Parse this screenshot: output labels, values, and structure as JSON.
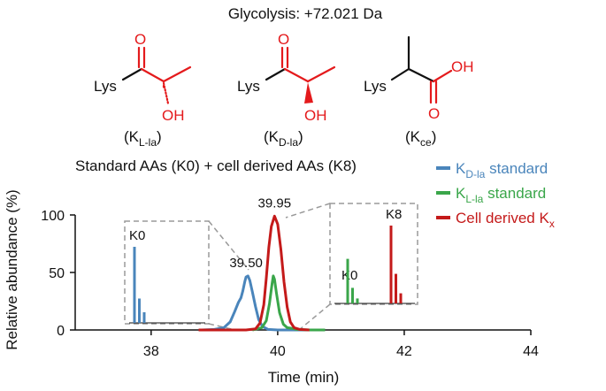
{
  "header": {
    "title": "Glycolysis: +72.021 Da"
  },
  "structures": [
    {
      "lys": "Lys",
      "o": "O",
      "oh": "OH",
      "caption": {
        "open": "(K",
        "sub": "L-la",
        "close": ")"
      }
    },
    {
      "lys": "Lys",
      "o": "O",
      "oh": "OH",
      "caption": {
        "open": "(K",
        "sub": "D-la",
        "close": ")"
      }
    },
    {
      "lys": "Lys",
      "o": "O",
      "oh": "OH",
      "caption": {
        "open": "(K",
        "sub": "ce",
        "close": ")"
      }
    }
  ],
  "colors": {
    "d_la": "#4a85bb",
    "l_la": "#3aa64a",
    "cell": "#c41a1a",
    "structure_red": "#e41a1c",
    "inset_border": "#9a9a9a"
  },
  "chart_data": {
    "type": "line",
    "title": "Standard AAs (K0) + cell derived AAs (K8)",
    "xlabel": "Time (min)",
    "ylabel": "Relative abundance (%)",
    "xlim": [
      36.8,
      44
    ],
    "ylim": [
      0,
      100
    ],
    "xticks": [
      38,
      40,
      42,
      44
    ],
    "yticks": [
      0,
      50,
      100
    ],
    "grid": false,
    "legend_position": "top-right",
    "legend": [
      {
        "key": "d_la",
        "pre": "K",
        "sub": "D-la",
        "post": " standard"
      },
      {
        "key": "l_la",
        "pre": "K",
        "sub": "L-la",
        "post": " standard"
      },
      {
        "key": "cell",
        "pre": "Cell derived K",
        "sub": "x",
        "post": ""
      }
    ],
    "series": [
      {
        "key": "d_la",
        "name": "KD-la standard",
        "points": [
          [
            38.8,
            0
          ],
          [
            39.0,
            0.5
          ],
          [
            39.15,
            2
          ],
          [
            39.25,
            7
          ],
          [
            39.32,
            16
          ],
          [
            39.38,
            24
          ],
          [
            39.42,
            28
          ],
          [
            39.45,
            34
          ],
          [
            39.48,
            42
          ],
          [
            39.5,
            46
          ],
          [
            39.53,
            47
          ],
          [
            39.56,
            43
          ],
          [
            39.6,
            33
          ],
          [
            39.65,
            20
          ],
          [
            39.7,
            9
          ],
          [
            39.76,
            3
          ],
          [
            39.85,
            0.5
          ],
          [
            40.0,
            0
          ],
          [
            40.6,
            0
          ]
        ]
      },
      {
        "key": "l_la",
        "name": "KL-la standard",
        "points": [
          [
            39.6,
            0
          ],
          [
            39.75,
            2
          ],
          [
            39.82,
            8
          ],
          [
            39.87,
            23
          ],
          [
            39.91,
            40
          ],
          [
            39.93,
            47
          ],
          [
            39.95,
            44
          ],
          [
            39.98,
            32
          ],
          [
            40.03,
            15
          ],
          [
            40.09,
            5
          ],
          [
            40.15,
            2
          ],
          [
            40.22,
            1.5
          ],
          [
            40.3,
            0.5
          ],
          [
            40.5,
            0
          ],
          [
            40.75,
            0
          ]
        ]
      },
      {
        "key": "cell",
        "name": "Cell derived Kx",
        "points": [
          [
            38.75,
            0
          ],
          [
            39.5,
            0
          ],
          [
            39.65,
            1
          ],
          [
            39.72,
            6
          ],
          [
            39.78,
            22
          ],
          [
            39.82,
            45
          ],
          [
            39.86,
            72
          ],
          [
            39.9,
            90
          ],
          [
            39.95,
            99
          ],
          [
            40.0,
            92
          ],
          [
            40.05,
            70
          ],
          [
            40.1,
            42
          ],
          [
            40.15,
            20
          ],
          [
            40.2,
            7
          ],
          [
            40.26,
            2
          ],
          [
            40.35,
            0.5
          ],
          [
            40.5,
            0
          ]
        ]
      }
    ],
    "peak_labels": [
      {
        "x": 39.5,
        "y": 47,
        "text": "39.50"
      },
      {
        "x": 39.95,
        "y": 99,
        "text": "39.95"
      }
    ],
    "insets": [
      {
        "label": "K0",
        "series": "d_la",
        "sticks": [
          [
            0,
            1.0
          ],
          [
            1,
            0.32
          ],
          [
            2,
            0.14
          ]
        ]
      },
      {
        "label_k0": "K0",
        "label_k8": "K8",
        "series_k0": "l_la",
        "series_k8": "cell",
        "sticks_k0": [
          [
            0,
            0.63
          ],
          [
            1,
            0.22
          ],
          [
            2,
            0.07
          ]
        ],
        "sticks_k8": [
          [
            8,
            1.0
          ],
          [
            9,
            0.38
          ],
          [
            10,
            0.13
          ]
        ]
      }
    ]
  }
}
